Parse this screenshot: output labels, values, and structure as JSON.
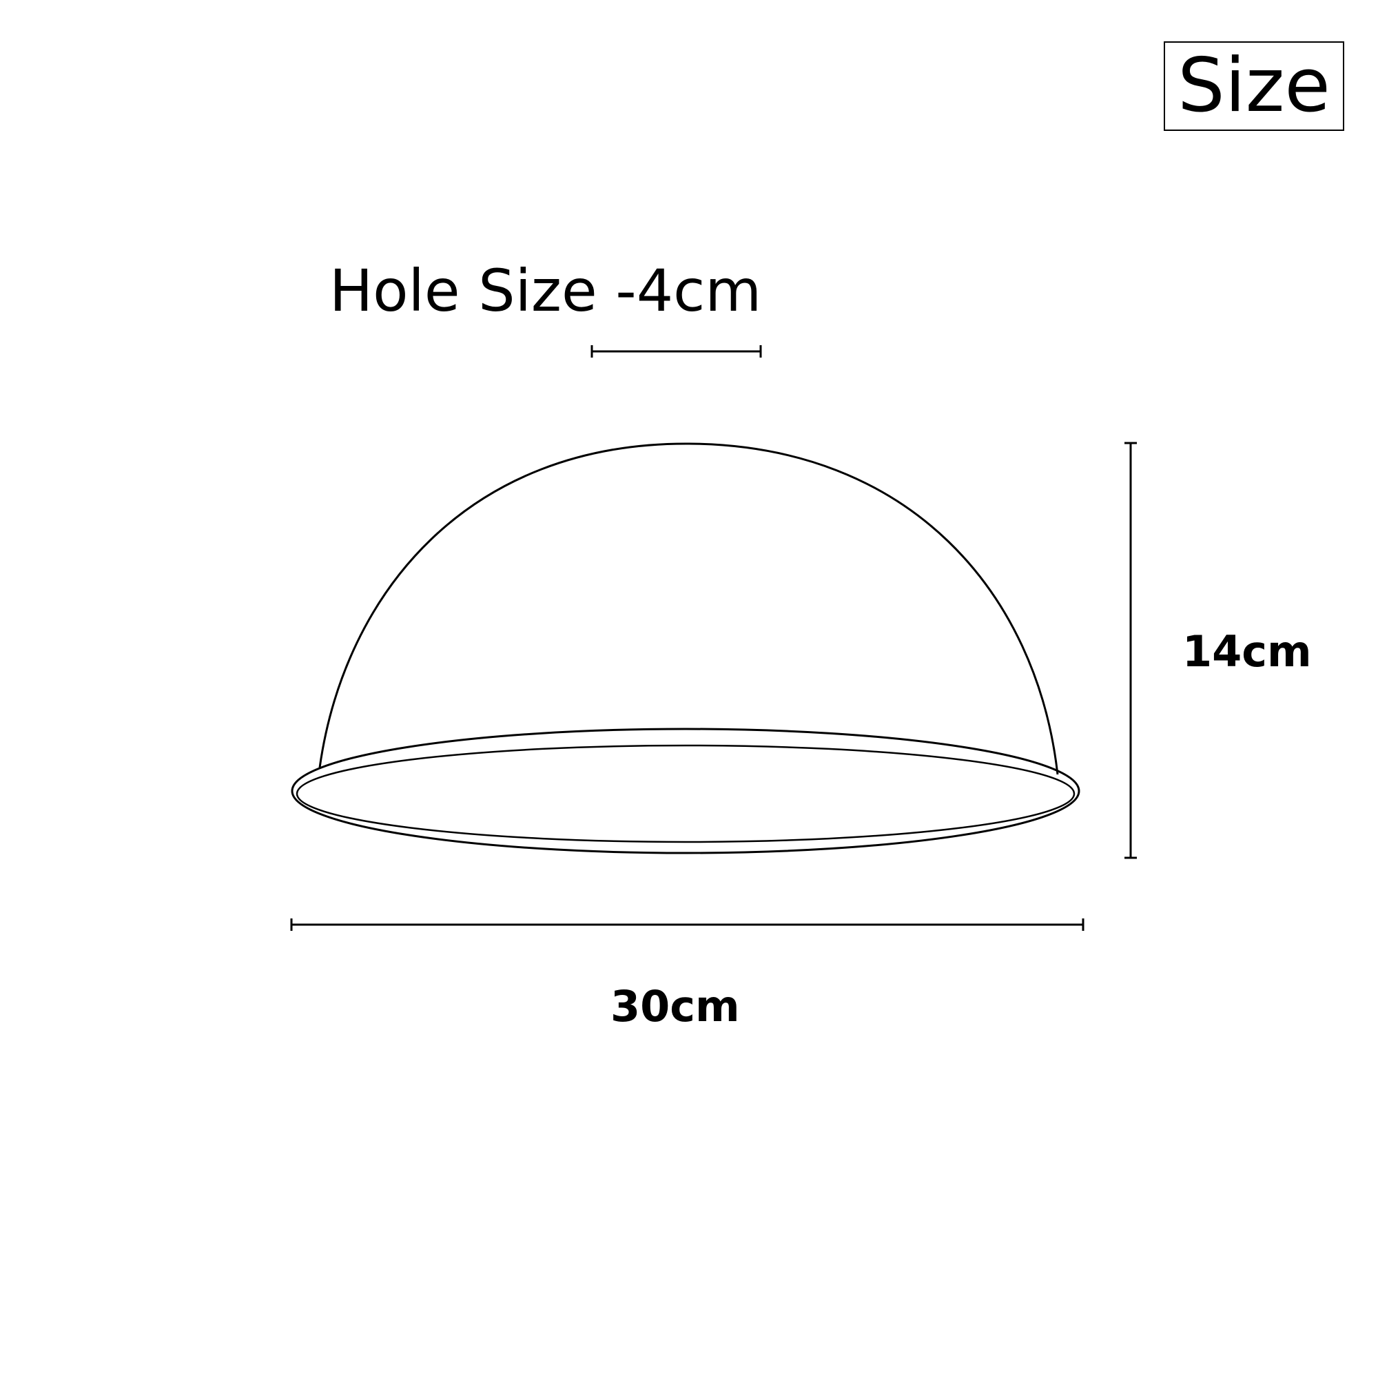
{
  "title": "Size",
  "hole_size_label": "Hole Size -4cm",
  "width_label": "30cm",
  "height_label": "14cm",
  "colors": {
    "line": "#000000",
    "background": "#ffffff"
  }
}
